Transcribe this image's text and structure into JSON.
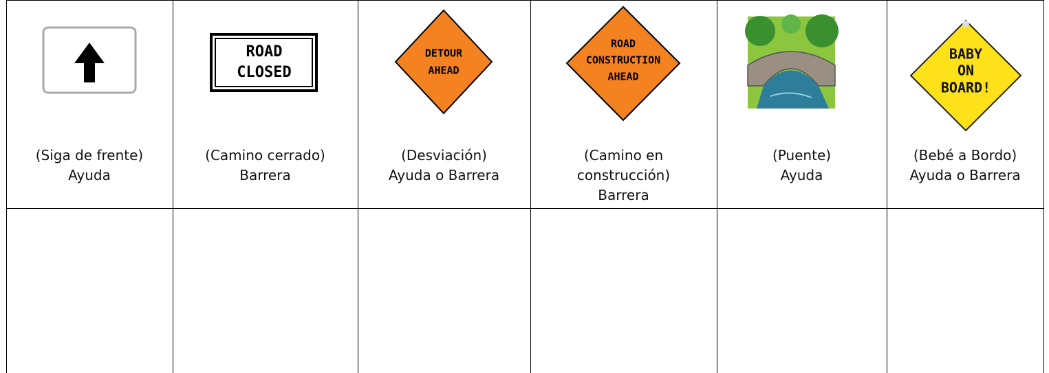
{
  "table": {
    "rows": [
      {
        "cells": [
          {
            "sign": [],
            "caption": [
              "(Siga de frente)",
              "Ayuda"
            ]
          },
          {
            "sign": [
              "ROAD",
              "CLOSED"
            ],
            "caption": [
              "(Camino cerrado)",
              "Barrera"
            ]
          },
          {
            "sign": [
              "DETOUR",
              "AHEAD"
            ],
            "caption": [
              "(Desviación)",
              "Ayuda o Barrera"
            ]
          },
          {
            "sign": [
              "ROAD",
              "CONSTRUCTION",
              "AHEAD"
            ],
            "caption": [
              "(Camino en",
              "construcción)",
              "Barrera"
            ]
          },
          {
            "sign": [],
            "caption": [
              "(Puente)",
              "Ayuda"
            ]
          },
          {
            "sign": [
              "BABY",
              "ON",
              "BOARD!"
            ],
            "caption": [
              "(Bebé a Bordo)",
              "Ayuda o Barrera"
            ]
          }
        ]
      }
    ]
  }
}
